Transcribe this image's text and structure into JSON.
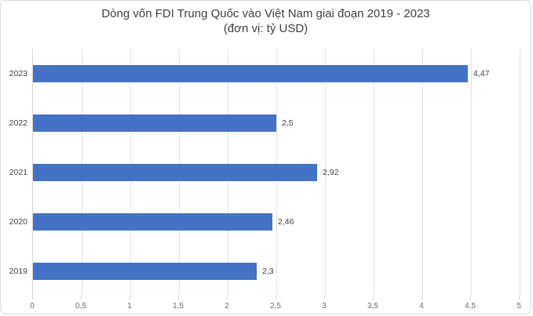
{
  "chart_data": {
    "type": "bar",
    "orientation": "horizontal",
    "title": "Dòng vốn FDI Trung Quốc vào Việt Nam giai đoạn 2019 - 2023",
    "subtitle": "(đơn vị: tỷ USD)",
    "categories": [
      "2023",
      "2022",
      "2021",
      "2020",
      "2019"
    ],
    "values": [
      4.47,
      2.5,
      2.92,
      2.46,
      2.3
    ],
    "value_labels": [
      "4,47",
      "2,5",
      "2,92",
      "2,46",
      "2,3"
    ],
    "x_ticks": [
      0,
      0.5,
      1,
      1.5,
      2,
      2.5,
      3,
      3.5,
      4,
      4.5,
      5
    ],
    "x_tick_labels": [
      "0",
      "0,5",
      "1",
      "1,5",
      "2",
      "2,5",
      "3",
      "3,5",
      "4",
      "4,5",
      "5"
    ],
    "xlim": [
      0,
      5
    ],
    "grid": true,
    "legend": "none",
    "bar_color": "#4472C4",
    "gridline_color": "#e2e2e2",
    "axis_line_color": "#d6d6d6",
    "title_color": "#3f3f3f",
    "label_color": "#404040",
    "tick_label_color": "#6a6a6a",
    "frame_border_color": "#d9d9d9"
  }
}
